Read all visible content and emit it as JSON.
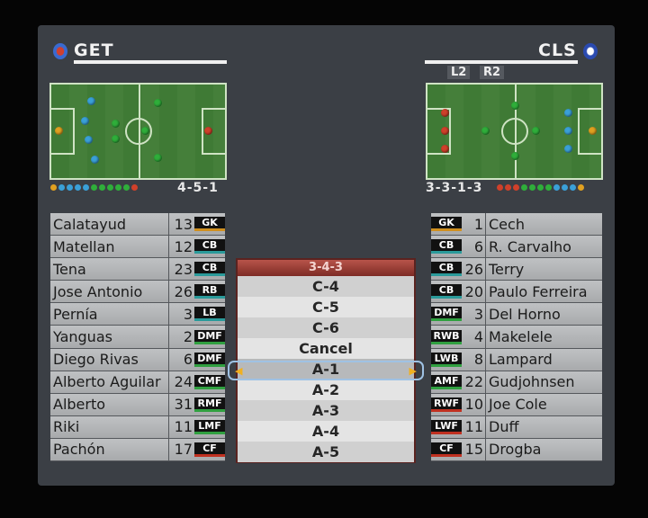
{
  "home": {
    "abbr": "GET",
    "formation": "4-5-1",
    "players": [
      {
        "name": "Calatayud",
        "number": "13",
        "pos": "GK"
      },
      {
        "name": "Matellan",
        "number": "12",
        "pos": "CB"
      },
      {
        "name": "Tena",
        "number": "23",
        "pos": "CB"
      },
      {
        "name": "Jose Antonio",
        "number": "26",
        "pos": "RB"
      },
      {
        "name": "Pernía",
        "number": "3",
        "pos": "LB"
      },
      {
        "name": "Yanguas",
        "number": "2",
        "pos": "DMF"
      },
      {
        "name": "Diego Rivas",
        "number": "6",
        "pos": "DMF"
      },
      {
        "name": "Alberto Aguilar",
        "number": "24",
        "pos": "CMF"
      },
      {
        "name": "Alberto",
        "number": "31",
        "pos": "RMF"
      },
      {
        "name": "Riki",
        "number": "11",
        "pos": "LMF"
      },
      {
        "name": "Pachón",
        "number": "17",
        "pos": "CF"
      }
    ]
  },
  "away": {
    "abbr": "CLS",
    "formation": "3-3-1-3",
    "keys": [
      "L2",
      "R2"
    ],
    "players": [
      {
        "name": "Cech",
        "number": "1",
        "pos": "GK"
      },
      {
        "name": "R. Carvalho",
        "number": "6",
        "pos": "CB"
      },
      {
        "name": "Terry",
        "number": "26",
        "pos": "CB"
      },
      {
        "name": "Paulo Ferreira",
        "number": "20",
        "pos": "CB"
      },
      {
        "name": "Del Horno",
        "number": "3",
        "pos": "DMF"
      },
      {
        "name": "Makelele",
        "number": "4",
        "pos": "RWB"
      },
      {
        "name": "Lampard",
        "number": "8",
        "pos": "LWB"
      },
      {
        "name": "Gudjohnsen",
        "number": "22",
        "pos": "AMF"
      },
      {
        "name": "Joe Cole",
        "number": "10",
        "pos": "RWF"
      },
      {
        "name": "Duff",
        "number": "11",
        "pos": "LWF"
      },
      {
        "name": "Drogba",
        "number": "15",
        "pos": "CF"
      }
    ]
  },
  "menu": {
    "title": "3-4-3",
    "items": [
      "C-4",
      "C-5",
      "C-6",
      "Cancel",
      "A-1",
      "A-2",
      "A-3",
      "A-4",
      "A-5"
    ],
    "selected": "A-1"
  },
  "colors": {
    "gk": "#e0a020",
    "def": "#3aa0d8",
    "mid": "#2fae3a",
    "fwd": "#d0402a",
    "gk_line": "#d09020",
    "def_line": "#2a9a9a",
    "mid_line": "#30a040",
    "fwd_line": "#c03020"
  }
}
